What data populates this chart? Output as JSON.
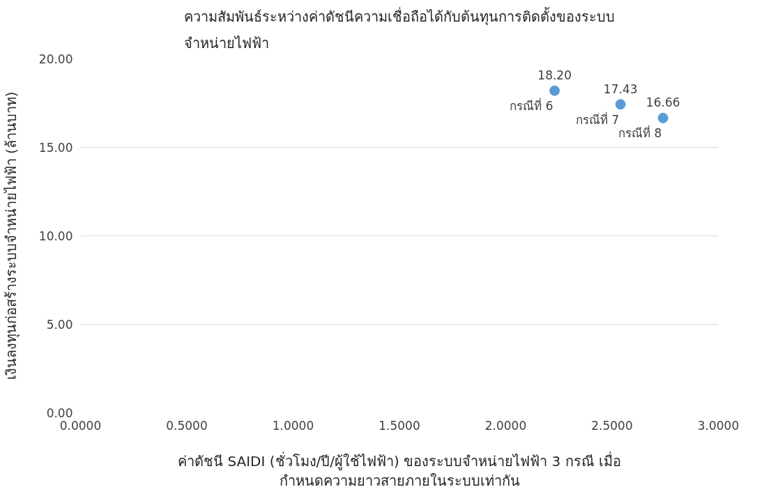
{
  "chart_data": {
    "type": "scatter",
    "title": "ความสัมพันธ์ระหว่างค่าดัชนีความเชื่อถือได้กับต้นทุนการติดตั้งของระบบ\nจำหน่ายไฟฟ้า",
    "xlabel": "ค่าดัชนี SAIDI (ชั่วโมง/ปี/ผู้ใช้ไฟฟ้า) ของระบบจำหน่ายไฟฟ้า 3 กรณี เมื่อ\nกำหนดความยาวสายภายในระบบเท่ากัน",
    "ylabel": "เงินลงทุนก่อสร้างระบบจำหน่ายไฟฟ้า (ล้านบาท)",
    "x": [
      2.23,
      2.54,
      2.74
    ],
    "series": [
      {
        "color": "#5b9bd5",
        "values": [
          18.2,
          17.43,
          16.66
        ],
        "value_labels": [
          "18.20",
          "17.43",
          "16.66"
        ]
      }
    ],
    "annotations": [
      {
        "text": "กรณีที่ 6",
        "x": 2.23,
        "y": 18.2
      },
      {
        "text": "กรณีที่ 7",
        "x": 2.54,
        "y": 17.43
      },
      {
        "text": "กรณีที่ 8",
        "x": 2.74,
        "y": 16.66
      }
    ],
    "xlim": [
      0,
      3
    ],
    "ylim": [
      0,
      20
    ],
    "xticks": [
      {
        "value": 0,
        "label": "0.0000"
      },
      {
        "value": 0.5,
        "label": "0.5000"
      },
      {
        "value": 1,
        "label": "1.0000"
      },
      {
        "value": 1.5,
        "label": "1.5000"
      },
      {
        "value": 2,
        "label": "2.0000"
      },
      {
        "value": 2.5,
        "label": "2.5000"
      },
      {
        "value": 3,
        "label": "3.0000"
      }
    ],
    "yticks": [
      {
        "value": 0,
        "label": "0.00"
      },
      {
        "value": 5,
        "label": "5.00"
      },
      {
        "value": 10,
        "label": "10.00"
      },
      {
        "value": 15,
        "label": "15.00"
      },
      {
        "value": 20,
        "label": "20.00"
      }
    ],
    "grid": "y",
    "marker": "circle"
  }
}
